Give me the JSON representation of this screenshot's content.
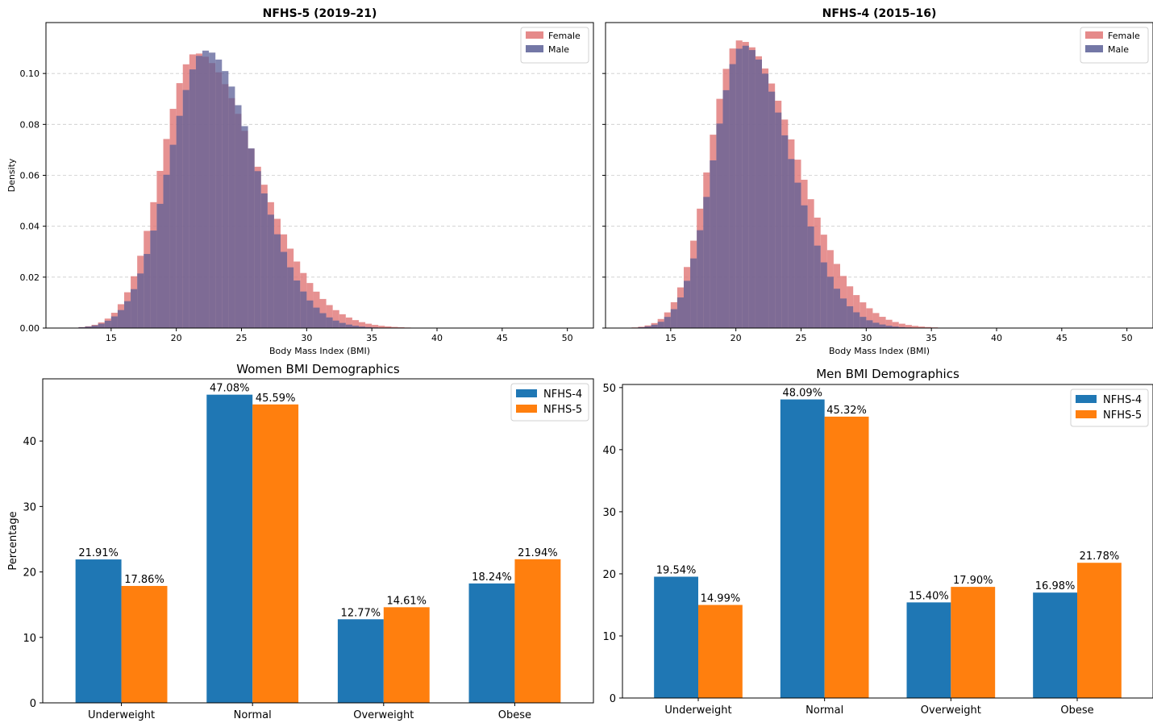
{
  "chart_data": [
    {
      "type": "area",
      "title": "NFHS-5 (2019–21)",
      "xlabel": "Body Mass Index (BMI)",
      "ylabel": "Density",
      "xlim": [
        10,
        52
      ],
      "ylim": [
        0,
        0.12
      ],
      "xticks": [
        "15",
        "20",
        "25",
        "30",
        "35",
        "40",
        "45",
        "50"
      ],
      "yticks": [
        "0.00",
        "0.02",
        "0.04",
        "0.06",
        "0.08",
        "0.10"
      ],
      "grid": "y-dashed",
      "legend_position": "top-right",
      "series": [
        {
          "name": "Female",
          "color": "#e07575",
          "mode": 21.5,
          "peak": 0.108,
          "sigma_left": 2.6,
          "sigma_right": 4.6
        },
        {
          "name": "Male",
          "color": "#5b5f97",
          "mode": 22.3,
          "peak": 0.109,
          "sigma_left": 2.8,
          "sigma_right": 3.7
        }
      ],
      "bins": {
        "start": 12,
        "end": 50,
        "width": 0.5
      }
    },
    {
      "type": "area",
      "title": "NFHS-4 (2015–16)",
      "xlabel": "Body Mass Index (BMI)",
      "ylabel": "",
      "xlim": [
        10,
        52
      ],
      "ylim": [
        0,
        0.12
      ],
      "xticks": [
        "15",
        "20",
        "25",
        "30",
        "35",
        "40",
        "45",
        "50"
      ],
      "yticks": [],
      "grid": "y-dashed",
      "legend_position": "top-right",
      "series": [
        {
          "name": "Female",
          "color": "#e07575",
          "mode": 20.3,
          "peak": 0.113,
          "sigma_left": 2.3,
          "sigma_right": 4.3
        },
        {
          "name": "Male",
          "color": "#5b5f97",
          "mode": 20.6,
          "peak": 0.111,
          "sigma_left": 2.3,
          "sigma_right": 3.6
        }
      ],
      "bins": {
        "start": 12,
        "end": 50,
        "width": 0.5
      }
    },
    {
      "type": "bar",
      "title": "Women BMI Demographics",
      "xlabel": "",
      "ylabel": "Percentage",
      "categories": [
        "Underweight",
        "Normal",
        "Overweight",
        "Obese"
      ],
      "ylim": [
        0,
        49.5
      ],
      "yticks": [
        "0",
        "10",
        "20",
        "30",
        "40"
      ],
      "legend_position": "top-right",
      "series": [
        {
          "name": "NFHS-4",
          "color": "#1f77b4",
          "values": [
            21.91,
            47.08,
            12.77,
            18.24
          ],
          "labels": [
            "21.91%",
            "47.08%",
            "12.77%",
            "18.24%"
          ]
        },
        {
          "name": "NFHS-5",
          "color": "#ff7f0e",
          "values": [
            17.86,
            45.59,
            14.61,
            21.94
          ],
          "labels": [
            "17.86%",
            "45.59%",
            "14.61%",
            "21.94%"
          ]
        }
      ]
    },
    {
      "type": "bar",
      "title": "Men BMI Demographics",
      "xlabel": "",
      "ylabel": "",
      "categories": [
        "Underweight",
        "Normal",
        "Overweight",
        "Obese"
      ],
      "ylim": [
        0,
        50.5
      ],
      "yticks": [
        "0",
        "10",
        "20",
        "30",
        "40",
        "50"
      ],
      "legend_position": "top-right",
      "series": [
        {
          "name": "NFHS-4",
          "color": "#1f77b4",
          "values": [
            19.54,
            48.09,
            15.4,
            16.98
          ],
          "labels": [
            "19.54%",
            "48.09%",
            "15.40%",
            "16.98%"
          ]
        },
        {
          "name": "NFHS-5",
          "color": "#ff7f0e",
          "values": [
            14.99,
            45.32,
            17.9,
            21.78
          ],
          "labels": [
            "14.99%",
            "45.32%",
            "17.90%",
            "21.78%"
          ]
        }
      ]
    }
  ]
}
